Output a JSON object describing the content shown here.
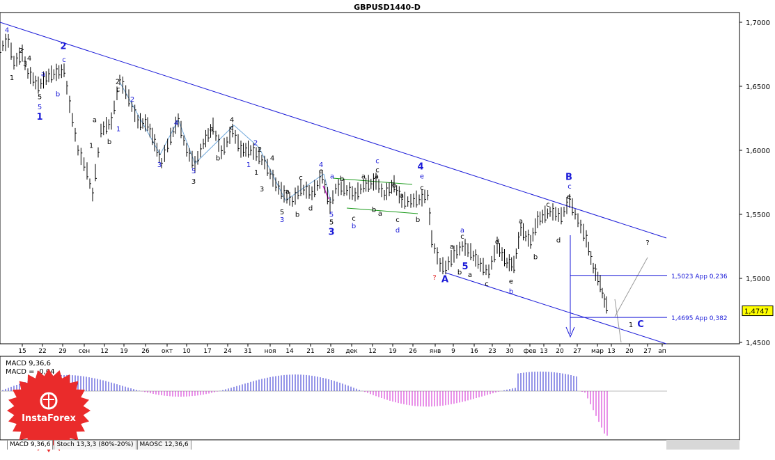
{
  "chart_data": {
    "type": "candlestick-line",
    "title": "GBPUSD1440-D",
    "symbol": "GBPUSD",
    "timeframe": "D1",
    "price_axis": {
      "ticks": [
        "1,7000",
        "1,6500",
        "1,6000",
        "1,5500",
        "1,5000",
        "1,4500"
      ],
      "range": [
        1.45,
        1.7
      ],
      "current_price": "1,4747"
    },
    "time_axis": {
      "ticks": [
        "15",
        "22",
        "29",
        "сен",
        "12",
        "19",
        "26",
        "окт",
        "10",
        "17",
        "24",
        "31",
        "ноя",
        "14",
        "21",
        "28",
        "дек",
        "12",
        "19",
        "26",
        "янв",
        "9",
        "16",
        "23",
        "30",
        "фев",
        "13",
        "20",
        "27",
        "мар",
        "13",
        "20",
        "27",
        "ап"
      ]
    },
    "levels": [
      {
        "label": "1,5023 Арр 0,236",
        "price": 1.5023
      },
      {
        "label": "1,4695 Арр 0,382",
        "price": 1.4695
      }
    ],
    "price_path": [
      [
        0,
        1.68
      ],
      [
        12,
        1.685
      ],
      [
        20,
        1.668
      ],
      [
        32,
        1.675
      ],
      [
        40,
        1.66
      ],
      [
        55,
        1.65
      ],
      [
        70,
        1.658
      ],
      [
        92,
        1.662
      ],
      [
        100,
        1.635
      ],
      [
        112,
        1.6
      ],
      [
        125,
        1.583
      ],
      [
        133,
        1.565
      ],
      [
        145,
        1.615
      ],
      [
        160,
        1.622
      ],
      [
        172,
        1.655
      ],
      [
        185,
        1.64
      ],
      [
        198,
        1.622
      ],
      [
        212,
        1.62
      ],
      [
        222,
        1.605
      ],
      [
        232,
        1.59
      ],
      [
        245,
        1.61
      ],
      [
        256,
        1.623
      ],
      [
        268,
        1.6
      ],
      [
        280,
        1.588
      ],
      [
        292,
        1.605
      ],
      [
        306,
        1.618
      ],
      [
        318,
        1.598
      ],
      [
        334,
        1.615
      ],
      [
        346,
        1.6
      ],
      [
        360,
        1.6
      ],
      [
        372,
        1.595
      ],
      [
        380,
        1.59
      ],
      [
        396,
        1.573
      ],
      [
        408,
        1.565
      ],
      [
        420,
        1.56
      ],
      [
        432,
        1.57
      ],
      [
        448,
        1.566
      ],
      [
        463,
        1.579
      ],
      [
        474,
        1.556
      ],
      [
        482,
        1.57
      ],
      [
        494,
        1.57
      ],
      [
        510,
        1.565
      ],
      [
        522,
        1.572
      ],
      [
        540,
        1.575
      ],
      [
        552,
        1.565
      ],
      [
        566,
        1.573
      ],
      [
        577,
        1.56
      ],
      [
        590,
        1.56
      ],
      [
        606,
        1.562
      ],
      [
        614,
        1.565
      ],
      [
        620,
        1.53
      ],
      [
        632,
        1.51
      ],
      [
        640,
        1.508
      ],
      [
        652,
        1.518
      ],
      [
        664,
        1.525
      ],
      [
        676,
        1.52
      ],
      [
        690,
        1.51
      ],
      [
        702,
        1.505
      ],
      [
        714,
        1.525
      ],
      [
        728,
        1.512
      ],
      [
        738,
        1.51
      ],
      [
        748,
        1.538
      ],
      [
        762,
        1.528
      ],
      [
        772,
        1.545
      ],
      [
        790,
        1.552
      ],
      [
        806,
        1.548
      ],
      [
        818,
        1.56
      ],
      [
        830,
        1.545
      ],
      [
        842,
        1.53
      ],
      [
        852,
        1.508
      ],
      [
        862,
        1.495
      ],
      [
        868,
        1.482
      ],
      [
        874,
        1.4747
      ]
    ],
    "wave_labels": [
      {
        "text": "4",
        "price": 1.692,
        "day": 10,
        "color": "blue"
      },
      {
        "text": "2",
        "price": 1.676,
        "day": 30,
        "color": "black"
      },
      {
        "text": "4",
        "price": 1.67,
        "day": 42,
        "color": "black"
      },
      {
        "text": "3",
        "price": 1.666,
        "day": 36,
        "color": "black"
      },
      {
        "text": "1",
        "price": 1.655,
        "day": 17,
        "color": "black"
      },
      {
        "text": "a",
        "price": 1.658,
        "day": 62,
        "color": "blue"
      },
      {
        "text": "b",
        "price": 1.642,
        "day": 83,
        "color": "blue"
      },
      {
        "text": "5",
        "price": 1.64,
        "day": 57,
        "color": "black"
      },
      {
        "text": "5",
        "price": 1.632,
        "day": 57,
        "color": "blue"
      },
      {
        "text": "1",
        "price": 1.624,
        "day": 57,
        "color": "blue",
        "big": true
      },
      {
        "text": "2",
        "price": 1.679,
        "day": 91,
        "color": "blue",
        "big": true
      },
      {
        "text": "c",
        "price": 1.669,
        "day": 92,
        "color": "blue"
      },
      {
        "text": "2",
        "price": 1.652,
        "day": 169,
        "color": "black"
      },
      {
        "text": "c",
        "price": 1.646,
        "day": 170,
        "color": "black"
      },
      {
        "text": "2",
        "price": 1.638,
        "day": 190,
        "color": "blue"
      },
      {
        "text": "a",
        "price": 1.622,
        "day": 136,
        "color": "black"
      },
      {
        "text": "b",
        "price": 1.605,
        "day": 157,
        "color": "black"
      },
      {
        "text": "1",
        "price": 1.602,
        "day": 131,
        "color": "black"
      },
      {
        "text": "1",
        "price": 1.615,
        "day": 170,
        "color": "blue"
      },
      {
        "text": "4",
        "price": 1.6195,
        "day": 253,
        "color": "blue"
      },
      {
        "text": "3",
        "price": 1.587,
        "day": 229,
        "color": "blue"
      },
      {
        "text": "5",
        "price": 1.582,
        "day": 278,
        "color": "blue"
      },
      {
        "text": "3",
        "price": 1.574,
        "day": 278,
        "color": "black"
      },
      {
        "text": "4",
        "price": 1.622,
        "day": 333,
        "color": "black"
      },
      {
        "text": "c",
        "price": 1.616,
        "day": 333,
        "color": "black"
      },
      {
        "text": "a",
        "price": 1.615,
        "day": 304,
        "color": "black"
      },
      {
        "text": "b",
        "price": 1.592,
        "day": 313,
        "color": "black"
      },
      {
        "text": "2",
        "price": 1.604,
        "day": 367,
        "color": "blue"
      },
      {
        "text": "2",
        "price": 1.599,
        "day": 373,
        "color": "black"
      },
      {
        "text": "1",
        "price": 1.587,
        "day": 357,
        "color": "blue"
      },
      {
        "text": "1",
        "price": 1.581,
        "day": 368,
        "color": "black"
      },
      {
        "text": "4",
        "price": 1.592,
        "day": 391,
        "color": "black"
      },
      {
        "text": "3",
        "price": 1.568,
        "day": 376,
        "color": "black"
      },
      {
        "text": "5",
        "price": 1.55,
        "day": 405,
        "color": "black"
      },
      {
        "text": "3",
        "price": 1.544,
        "day": 405,
        "color": "blue"
      },
      {
        "text": "b",
        "price": 1.548,
        "day": 427,
        "color": "black"
      },
      {
        "text": "a",
        "price": 1.566,
        "day": 413,
        "color": "black"
      },
      {
        "text": "c",
        "price": 1.577,
        "day": 432,
        "color": "black"
      },
      {
        "text": "d",
        "price": 1.553,
        "day": 446,
        "color": "black"
      },
      {
        "text": "4",
        "price": 1.587,
        "day": 461,
        "color": "blue"
      },
      {
        "text": "e",
        "price": 1.582,
        "day": 461,
        "color": "black"
      },
      {
        "text": "a",
        "price": 1.578,
        "day": 477,
        "color": "blue"
      },
      {
        "text": "b",
        "price": 1.576,
        "day": 491,
        "color": "black"
      },
      {
        "text": "5",
        "price": 1.548,
        "day": 476,
        "color": "blue"
      },
      {
        "text": "5",
        "price": 1.542,
        "day": 476,
        "color": "black"
      },
      {
        "text": "3",
        "price": 1.534,
        "day": 476,
        "color": "blue",
        "big": true
      },
      {
        "text": "c",
        "price": 1.545,
        "day": 508,
        "color": "black"
      },
      {
        "text": "b",
        "price": 1.539,
        "day": 508,
        "color": "blue"
      },
      {
        "text": "a",
        "price": 1.578,
        "day": 522,
        "color": "black"
      },
      {
        "text": "c",
        "price": 1.59,
        "day": 542,
        "color": "blue"
      },
      {
        "text": "c",
        "price": 1.583,
        "day": 542,
        "color": "black"
      },
      {
        "text": "a",
        "price": 1.578,
        "day": 541,
        "color": "black"
      },
      {
        "text": "b",
        "price": 1.571,
        "day": 566,
        "color": "black"
      },
      {
        "text": "b",
        "price": 1.552,
        "day": 537,
        "color": "black"
      },
      {
        "text": "a",
        "price": 1.549,
        "day": 546,
        "color": "black"
      },
      {
        "text": "c",
        "price": 1.544,
        "day": 571,
        "color": "black"
      },
      {
        "text": "d",
        "price": 1.536,
        "day": 571,
        "color": "blue"
      },
      {
        "text": "a",
        "price": 1.563,
        "day": 577,
        "color": "black"
      },
      {
        "text": "b",
        "price": 1.544,
        "day": 600,
        "color": "black"
      },
      {
        "text": "4",
        "price": 1.585,
        "day": 604,
        "color": "blue",
        "big": true
      },
      {
        "text": "e",
        "price": 1.578,
        "day": 606,
        "color": "blue"
      },
      {
        "text": "c",
        "price": 1.569,
        "day": 606,
        "color": "black"
      },
      {
        "text": "5",
        "price": 1.507,
        "day": 668,
        "color": "blue",
        "big": true
      },
      {
        "text": "A",
        "price": 1.497,
        "day": 639,
        "color": "blue",
        "big": true
      },
      {
        "text": "?",
        "price": 1.499,
        "day": 624,
        "color": "red"
      },
      {
        "text": "a",
        "price": 1.536,
        "day": 664,
        "color": "blue"
      },
      {
        "text": "c",
        "price": 1.531,
        "day": 664,
        "color": "black"
      },
      {
        "text": "a",
        "price": 1.523,
        "day": 649,
        "color": "black"
      },
      {
        "text": "b",
        "price": 1.503,
        "day": 660,
        "color": "black"
      },
      {
        "text": "a",
        "price": 1.501,
        "day": 675,
        "color": "black"
      },
      {
        "text": "c",
        "price": 1.494,
        "day": 699,
        "color": "black"
      },
      {
        "text": "d",
        "price": 1.527,
        "day": 714,
        "color": "black"
      },
      {
        "text": "e",
        "price": 1.496,
        "day": 734,
        "color": "black"
      },
      {
        "text": "b",
        "price": 1.488,
        "day": 734,
        "color": "blue"
      },
      {
        "text": "a",
        "price": 1.543,
        "day": 748,
        "color": "black"
      },
      {
        "text": "b",
        "price": 1.515,
        "day": 769,
        "color": "black"
      },
      {
        "text": "c",
        "price": 1.556,
        "day": 787,
        "color": "black"
      },
      {
        "text": "d",
        "price": 1.528,
        "day": 802,
        "color": "black"
      },
      {
        "text": "B",
        "price": 1.577,
        "day": 817,
        "color": "blue",
        "big": true
      },
      {
        "text": "c",
        "price": 1.57,
        "day": 818,
        "color": "blue"
      },
      {
        "text": "e",
        "price": 1.562,
        "day": 817,
        "color": "black"
      },
      {
        "text": "?",
        "price": 1.526,
        "day": 930,
        "color": "black"
      },
      {
        "text": "1",
        "price": 1.462,
        "day": 906,
        "color": "black"
      },
      {
        "text": "C",
        "price": 1.462,
        "day": 920,
        "color": "blue",
        "big": true
      }
    ],
    "macd": {
      "label": "MACD 9,36,6",
      "value_label": "MACD = -0,04"
    }
  },
  "indicator_tabs": [
    "MACD 9,36,6",
    "Stoch 13,3,3 (80%-20%)",
    "MAOSC 12,36,6"
  ],
  "logo": {
    "text": "InstaForex",
    "color": "#ea2b2b"
  }
}
